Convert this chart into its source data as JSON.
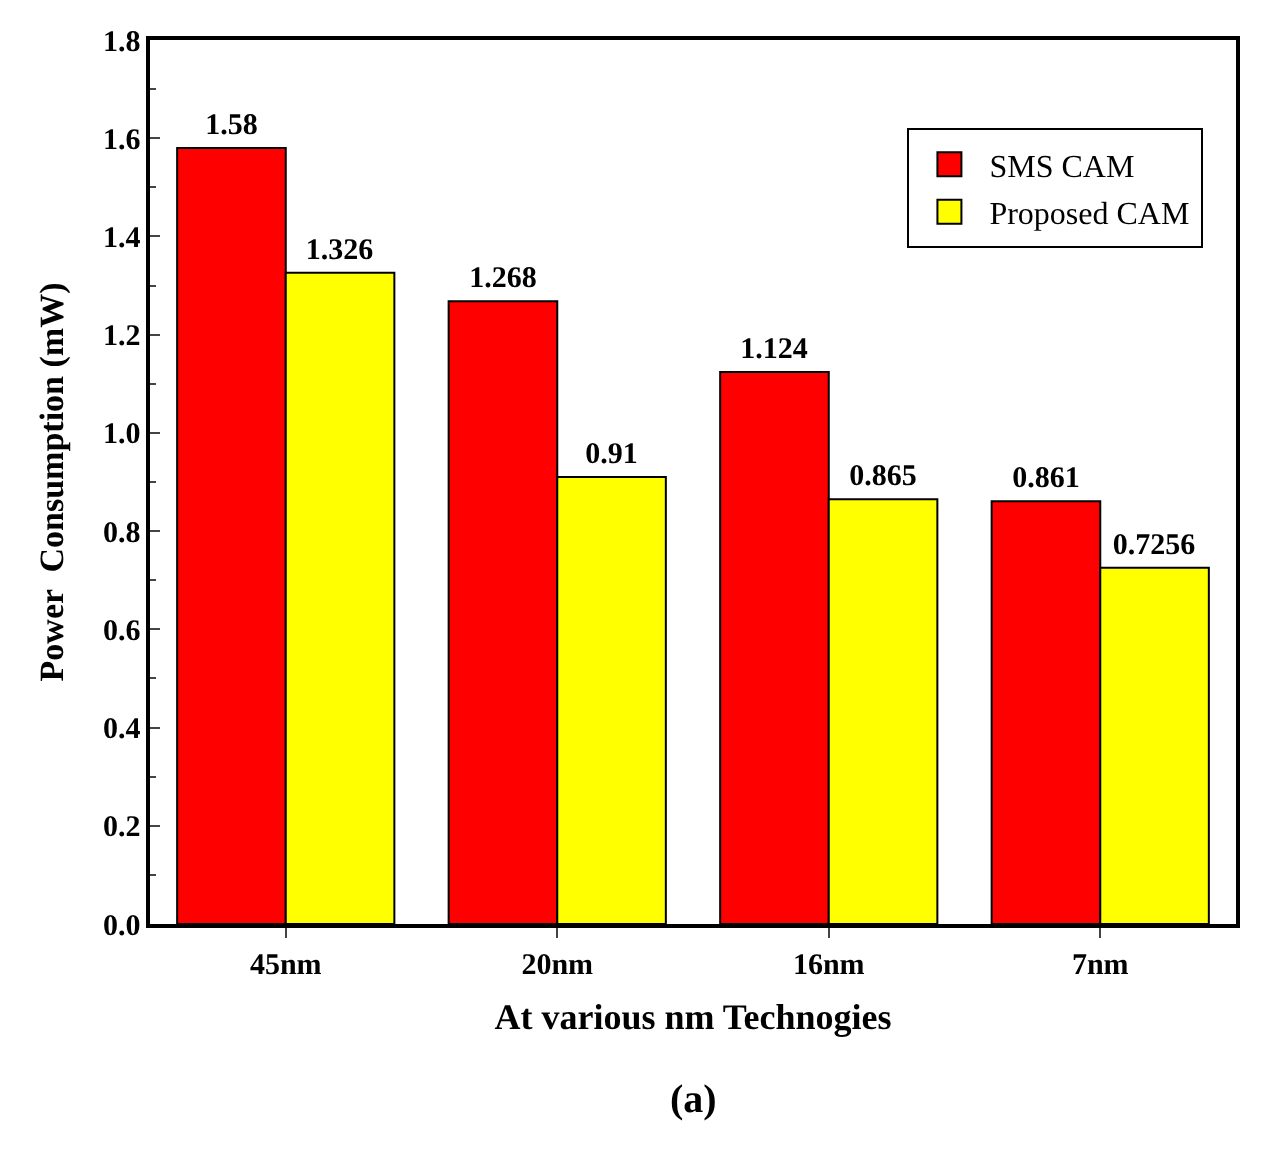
{
  "chart_data": {
    "type": "bar",
    "xlabel": "At various nm Technogies",
    "ylabel": "Power  Consumption (mW)",
    "categories": [
      "45nm",
      "20nm",
      "16nm",
      "7nm"
    ],
    "series": [
      {
        "name": "SMS CAM",
        "color": "#ff0000",
        "values": [
          1.58,
          1.268,
          1.124,
          0.861
        ]
      },
      {
        "name": "Proposed CAM",
        "color": "#ffff00",
        "values": [
          1.326,
          0.91,
          0.865,
          0.7256
        ]
      }
    ],
    "ylim": [
      0,
      1.8
    ],
    "yticks": [
      {
        "value": 0,
        "label": "0.0"
      },
      {
        "value": 0.2,
        "label": "0.2"
      },
      {
        "value": 0.4,
        "label": "0.4"
      },
      {
        "value": 0.6,
        "label": "0.6"
      },
      {
        "value": 0.8,
        "label": "0.8"
      },
      {
        "value": 1.0,
        "label": "1.0"
      },
      {
        "value": 1.2,
        "label": "1.2"
      },
      {
        "value": 1.4,
        "label": "1.4"
      },
      {
        "value": 1.6,
        "label": "1.6"
      },
      {
        "value": 1.8,
        "label": "1.8"
      }
    ],
    "data_labels": true,
    "legend": "top right",
    "annotations": [
      "(a)"
    ]
  }
}
